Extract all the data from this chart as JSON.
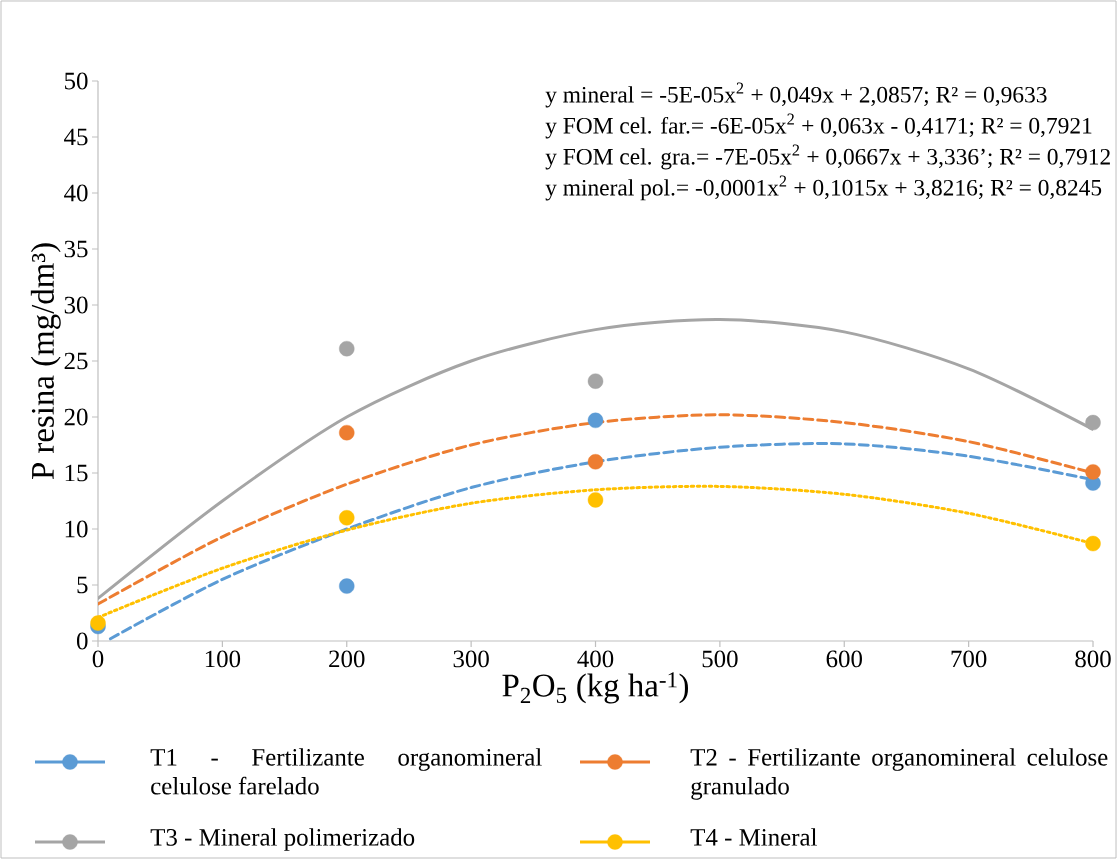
{
  "chart_data": {
    "type": "scatter",
    "xlabel": "P$_{2}$O$_{5}$ (kg ha$^{-1}$)",
    "ylabel": "P resina (mg/dm³)",
    "xlim": [
      0,
      800
    ],
    "ylim": [
      0,
      50
    ],
    "xticks": [
      0,
      100,
      200,
      300,
      400,
      500,
      600,
      700,
      800
    ],
    "yticks": [
      0,
      5,
      10,
      15,
      20,
      25,
      30,
      35,
      40,
      45,
      50
    ],
    "legend": "bottom",
    "annotations": [
      "y mineral = -5E-05x$^{2}$ + 0,049x + 2,0857; R² = 0,9633",
      "y FOM cel. far.= -6E-05x$^{2}$ + 0,063x - 0,4171; R² = 0,7921",
      "y FOM cel. gra.= -7E-05x$^{2}$ + 0,0667x + 3,336’; R² = 0,7912",
      "y mineral pol.= -0,0001x$^{2}$ + 0,1015x + 3,8216; R² = 0,8245"
    ],
    "series": [
      {
        "name": "T1 - Fertilizante organomineral celulose farelado",
        "marker": "circle",
        "color": "#5b9bd5",
        "x": [
          0,
          200,
          400,
          800
        ],
        "values": [
          1.3,
          4.9,
          19.7,
          14.1
        ]
      },
      {
        "name": "T2 - Fertilizante organomineral  celulose granulado",
        "marker": "circle",
        "color": "#ed7d31",
        "x": [
          200,
          400,
          800
        ],
        "values": [
          18.6,
          16.0,
          15.1
        ]
      },
      {
        "name": "T3 - Mineral polimerizado",
        "marker": "circle",
        "color": "#a5a5a5",
        "x": [
          200,
          400,
          800
        ],
        "values": [
          26.1,
          23.2,
          19.5
        ]
      },
      {
        "name": "T4 - Mineral",
        "marker": "circle",
        "color": "#ffc000",
        "x": [
          0,
          200,
          400,
          800
        ],
        "values": [
          1.6,
          11.0,
          12.6,
          8.7
        ]
      },
      {
        "type": "line",
        "color": "#5b9bd5",
        "line_style": "dashed",
        "x": [
          10,
          100,
          200,
          300,
          400,
          500,
          600,
          700,
          800
        ],
        "values": [
          0.2,
          5.5,
          10,
          13.7,
          16,
          17.3,
          17.6,
          16.5,
          14.4
        ]
      },
      {
        "type": "line",
        "color": "#ed7d31",
        "line_style": "dashed",
        "x": [
          0,
          100,
          200,
          300,
          400,
          500,
          600,
          700,
          800
        ],
        "values": [
          3.3,
          9.3,
          14,
          17.5,
          19.5,
          20.2,
          19.5,
          17.8,
          15.0
        ]
      },
      {
        "type": "line",
        "color": "#a5a5a5",
        "line_style": "solid",
        "x": [
          0,
          100,
          200,
          300,
          400,
          500,
          600,
          700,
          800
        ],
        "values": [
          3.8,
          12.5,
          20,
          25,
          27.8,
          28.7,
          27.6,
          24.3,
          18.9
        ]
      },
      {
        "type": "line",
        "color": "#ffc000",
        "line_style": "dotted",
        "x": [
          0,
          100,
          200,
          300,
          400,
          500,
          600,
          700,
          800
        ],
        "values": [
          2.1,
          6.5,
          9.9,
          12.3,
          13.5,
          13.8,
          13.1,
          11.4,
          8.7
        ]
      }
    ]
  }
}
